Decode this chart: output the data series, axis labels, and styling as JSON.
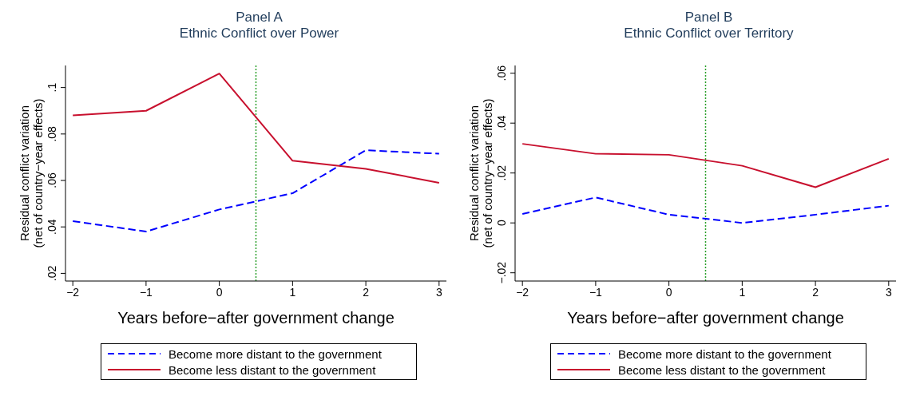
{
  "chart_data": [
    {
      "type": "line",
      "title": "Panel A",
      "subtitle": "Ethnic Conflict over Power",
      "xlabel": "Years before−after government change",
      "ylabel": "Residual conflict variation\n(net of country−year effects)",
      "x": [
        -2,
        -1,
        0,
        1,
        2,
        3
      ],
      "series": [
        {
          "name": "Become more distant to the government",
          "color": "#0000ff",
          "line_style": "dashed",
          "values": [
            0.0425,
            0.038,
            0.0475,
            0.0545,
            0.073,
            0.0715
          ]
        },
        {
          "name": "Become less distant to the government",
          "color": "#c8102e",
          "line_style": "solid",
          "values": [
            0.088,
            0.09,
            0.106,
            0.0685,
            0.065,
            0.059
          ]
        }
      ],
      "xlim": [
        -2.1,
        3.1
      ],
      "xticks": [
        -2,
        -1,
        0,
        1,
        2,
        3
      ],
      "ylim": [
        0.0167,
        0.1095
      ],
      "yticks": [
        {
          "value": 0.02,
          "label": ".02"
        },
        {
          "value": 0.04,
          "label": ".04"
        },
        {
          "value": 0.06,
          "label": ".06"
        },
        {
          "value": 0.08,
          "label": ".08"
        },
        {
          "value": 0.1,
          "label": ".1"
        }
      ],
      "ref_lines": [
        {
          "axis": "x",
          "value": 0.5,
          "color": "#2ca02c",
          "line_style": "dotted"
        }
      ],
      "grid": false,
      "legend": "bottom"
    },
    {
      "type": "line",
      "title": "Panel B",
      "subtitle": "Ethnic Conflict over Territory",
      "xlabel": "Years before−after government change",
      "ylabel": "Residual conflict variation\n(net of country−year effects)",
      "x": [
        -2,
        -1,
        0,
        1,
        2,
        3
      ],
      "series": [
        {
          "name": "Become more distant to the government",
          "color": "#0000ff",
          "line_style": "dashed",
          "values": [
            0.0036,
            0.0102,
            0.0033,
            0,
            0.0033,
            0.0069
          ]
        },
        {
          "name": "Become less distant to the government",
          "color": "#c8102e",
          "line_style": "solid",
          "values": [
            0.0317,
            0.0277,
            0.0273,
            0.0229,
            0.0143,
            0.0257
          ]
        }
      ],
      "xlim": [
        -2.1,
        3.1
      ],
      "xticks": [
        -2,
        -1,
        0,
        1,
        2,
        3
      ],
      "ylim": [
        -0.0233,
        0.0631
      ],
      "yticks": [
        {
          "value": -0.02,
          "label": "−.02"
        },
        0,
        {
          "value": 0.02,
          "label": ".02"
        },
        {
          "value": 0.04,
          "label": ".04"
        },
        {
          "value": 0.06,
          "label": ".06"
        }
      ],
      "ref_lines": [
        {
          "axis": "x",
          "value": 0.5,
          "color": "#2ca02c",
          "line_style": "dotted"
        }
      ],
      "grid": false,
      "legend": "bottom"
    }
  ]
}
